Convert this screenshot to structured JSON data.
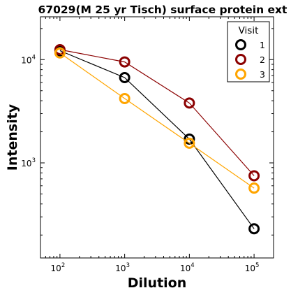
{
  "chart_data": {
    "type": "line",
    "title": "67029(M 25 yr Tisch) surface protein ext",
    "xlabel": "Dilution",
    "ylabel": "Intensity",
    "x_scale": "log",
    "y_scale": "log",
    "xlim": [
      50,
      200000
    ],
    "ylim": [
      120,
      26000
    ],
    "x": [
      100,
      1000,
      10000,
      100000
    ],
    "x_ticks": [
      {
        "value": 100,
        "base": "10",
        "exp": "2"
      },
      {
        "value": 1000,
        "base": "10",
        "exp": "3"
      },
      {
        "value": 10000,
        "base": "10",
        "exp": "4"
      },
      {
        "value": 100000,
        "base": "10",
        "exp": "5"
      }
    ],
    "y_ticks": [
      {
        "value": 1000,
        "base": "10",
        "exp": "3"
      },
      {
        "value": 10000,
        "base": "10",
        "exp": "4"
      }
    ],
    "legend": {
      "title": "Visit",
      "position": "top-right"
    },
    "series": [
      {
        "name": "1",
        "color": "#000000",
        "values": [
          12200,
          6700,
          1700,
          230
        ]
      },
      {
        "name": "2",
        "color": "#8b0000",
        "values": [
          12500,
          9500,
          3800,
          750
        ]
      },
      {
        "name": "3",
        "color": "#ffa500",
        "values": [
          11600,
          4200,
          1550,
          570
        ]
      }
    ],
    "grid": false
  }
}
